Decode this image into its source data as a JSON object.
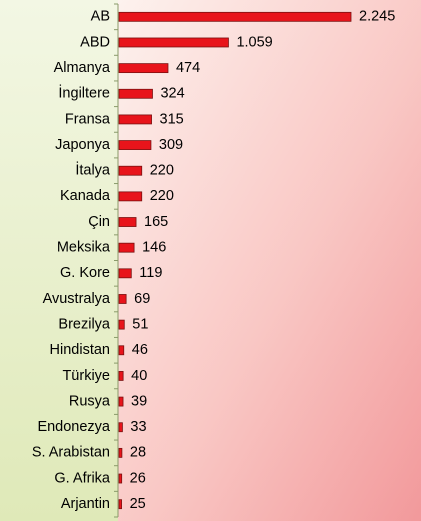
{
  "chart_data": {
    "type": "barh",
    "categories": [
      "AB",
      "ABD",
      "Almanya",
      "İngiltere",
      "Fransa",
      "Japonya",
      "İtalya",
      "Kanada",
      "Çin",
      "Meksika",
      "G. Kore",
      "Avustralya",
      "Brezilya",
      "Hindistan",
      "Türkiye",
      "Rusya",
      "Endonezya",
      "S. Arabistan",
      "G. Afrika",
      "Arjantin"
    ],
    "values": [
      2245,
      1059,
      474,
      324,
      315,
      309,
      220,
      220,
      165,
      146,
      119,
      69,
      51,
      46,
      40,
      39,
      33,
      28,
      26,
      25
    ],
    "value_labels": [
      "2.245",
      "1.059",
      "474",
      "324",
      "315",
      "309",
      "220",
      "220",
      "165",
      "146",
      "119",
      "69",
      "51",
      "46",
      "40",
      "39",
      "33",
      "28",
      "26",
      "25"
    ],
    "color": "#e8141b"
  }
}
